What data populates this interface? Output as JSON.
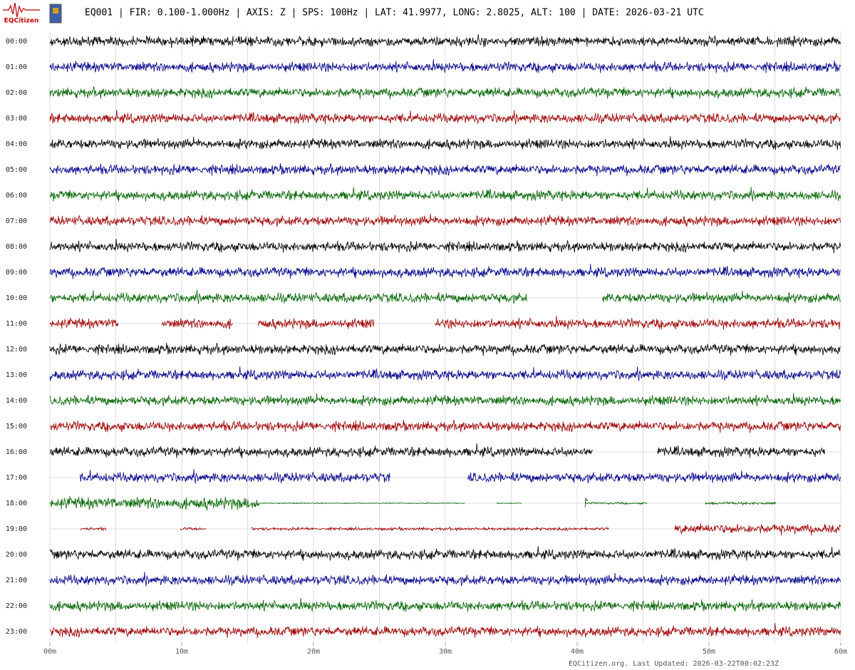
{
  "logo": "EQCitizen",
  "chart_data": {
    "type": "helicorder",
    "title": "EQ001 | FIR: 0.100-1.000Hz | AXIS: Z | SPS: 100Hz | LAT: 41.9977, LONG: 2.8025, ALT: 100 | DATE: 2026-03-21 UTC",
    "footer": "EQCitizen.org. Last Updated: 2026-03-22T00:02:23Z",
    "xlim": [
      0,
      60
    ],
    "xticks": [
      {
        "value": 0,
        "label": "00m"
      },
      {
        "value": 10,
        "label": "10m"
      },
      {
        "value": 20,
        "label": "20m"
      },
      {
        "value": 30,
        "label": "30m"
      },
      {
        "value": 40,
        "label": "40m"
      },
      {
        "value": 50,
        "label": "50m"
      },
      {
        "value": 60,
        "label": "60m"
      }
    ],
    "xminor": [
      5,
      15,
      25,
      35,
      45,
      55
    ],
    "grid": true,
    "series": [
      {
        "name": "00:00",
        "color": "#000000",
        "segments": [
          {
            "start": 0,
            "end": 60,
            "amplitude": 1
          }
        ]
      },
      {
        "name": "01:00",
        "color": "#00008b",
        "segments": [
          {
            "start": 0,
            "end": 60,
            "amplitude": 1
          }
        ]
      },
      {
        "name": "02:00",
        "color": "#006400",
        "segments": [
          {
            "start": 0,
            "end": 60,
            "amplitude": 1
          }
        ]
      },
      {
        "name": "03:00",
        "color": "#a00000",
        "segments": [
          {
            "start": 0,
            "end": 60,
            "amplitude": 1
          }
        ]
      },
      {
        "name": "04:00",
        "color": "#000000",
        "segments": [
          {
            "start": 0,
            "end": 60,
            "amplitude": 1
          }
        ]
      },
      {
        "name": "05:00",
        "color": "#00008b",
        "segments": [
          {
            "start": 0,
            "end": 60,
            "amplitude": 1
          }
        ]
      },
      {
        "name": "06:00",
        "color": "#006400",
        "segments": [
          {
            "start": 0,
            "end": 60,
            "amplitude": 1
          }
        ]
      },
      {
        "name": "07:00",
        "color": "#a00000",
        "segments": [
          {
            "start": 0,
            "end": 60,
            "amplitude": 1
          }
        ]
      },
      {
        "name": "08:00",
        "color": "#000000",
        "segments": [
          {
            "start": 0,
            "end": 60,
            "amplitude": 1
          }
        ]
      },
      {
        "name": "09:00",
        "color": "#00008b",
        "segments": [
          {
            "start": 0,
            "end": 60,
            "amplitude": 1
          }
        ]
      },
      {
        "name": "10:00",
        "color": "#006400",
        "segments": [
          {
            "start": 0,
            "end": 36.2,
            "amplitude": 1
          },
          {
            "start": 41.9,
            "end": 60,
            "amplitude": 1
          }
        ]
      },
      {
        "name": "11:00",
        "color": "#a00000",
        "segments": [
          {
            "start": 0,
            "end": 5.2,
            "amplitude": 1
          },
          {
            "start": 8.5,
            "end": 13.9,
            "amplitude": 1
          },
          {
            "start": 15.8,
            "end": 24.6,
            "amplitude": 1
          },
          {
            "start": 29.2,
            "end": 60,
            "amplitude": 1
          }
        ]
      },
      {
        "name": "12:00",
        "color": "#000000",
        "segments": [
          {
            "start": 0,
            "end": 60,
            "amplitude": 1
          }
        ]
      },
      {
        "name": "13:00",
        "color": "#00008b",
        "segments": [
          {
            "start": 0,
            "end": 60,
            "amplitude": 1
          }
        ]
      },
      {
        "name": "14:00",
        "color": "#006400",
        "segments": [
          {
            "start": 0,
            "end": 60,
            "amplitude": 1
          }
        ]
      },
      {
        "name": "15:00",
        "color": "#a00000",
        "segments": [
          {
            "start": 0,
            "end": 60,
            "amplitude": 1
          }
        ]
      },
      {
        "name": "16:00",
        "color": "#000000",
        "segments": [
          {
            "start": 0,
            "end": 41.2,
            "amplitude": 1
          },
          {
            "start": 46.1,
            "end": 58.8,
            "amplitude": 1
          }
        ]
      },
      {
        "name": "17:00",
        "color": "#00008b",
        "segments": [
          {
            "start": 2.3,
            "end": 25.8,
            "amplitude": 1
          },
          {
            "start": 31.7,
            "end": 60,
            "amplitude": 1
          }
        ]
      },
      {
        "name": "18:00",
        "color": "#006400",
        "segments": [
          {
            "start": 0,
            "end": 15.9,
            "amplitude": 1.2
          },
          {
            "start": 15.9,
            "end": 31.5,
            "amplitude": 0.1
          },
          {
            "start": 33.9,
            "end": 35.8,
            "amplitude": 0.1
          },
          {
            "start": 40.6,
            "end": 45.3,
            "amplitude": 0.2
          },
          {
            "start": 40.6,
            "end": 40.8,
            "amplitude": 2
          },
          {
            "start": 49.7,
            "end": 55.1,
            "amplitude": 0.3
          }
        ]
      },
      {
        "name": "19:00",
        "color": "#a00000",
        "segments": [
          {
            "start": 2.3,
            "end": 4.3,
            "amplitude": 0.3
          },
          {
            "start": 9.9,
            "end": 11.9,
            "amplitude": 0.3
          },
          {
            "start": 15.3,
            "end": 42.4,
            "amplitude": 0.3
          },
          {
            "start": 47.4,
            "end": 60,
            "amplitude": 1
          }
        ]
      },
      {
        "name": "20:00",
        "color": "#000000",
        "segments": [
          {
            "start": 0,
            "end": 60,
            "amplitude": 1
          }
        ]
      },
      {
        "name": "21:00",
        "color": "#00008b",
        "segments": [
          {
            "start": 0,
            "end": 60,
            "amplitude": 1
          }
        ]
      },
      {
        "name": "22:00",
        "color": "#006400",
        "segments": [
          {
            "start": 0,
            "end": 60,
            "amplitude": 1
          }
        ]
      },
      {
        "name": "23:00",
        "color": "#a00000",
        "segments": [
          {
            "start": 0,
            "end": 60,
            "amplitude": 1
          }
        ]
      }
    ]
  }
}
